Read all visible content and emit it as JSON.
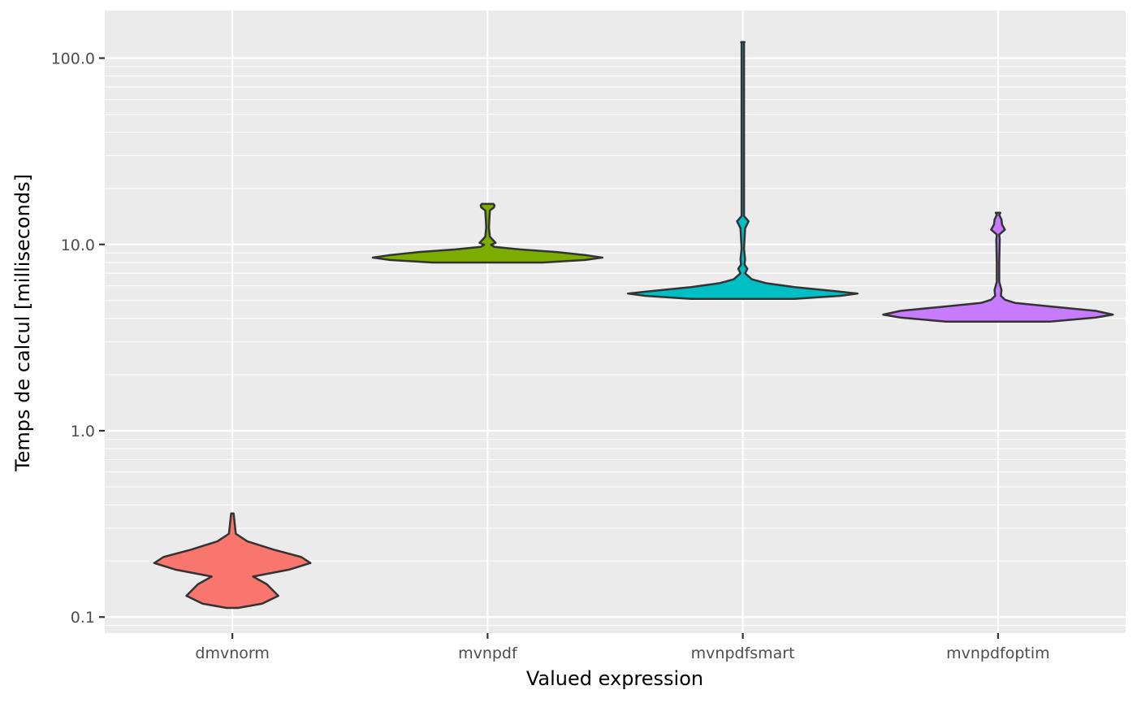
{
  "chart_data": {
    "type": "violin",
    "xlabel": "Valued expression",
    "ylabel": "Temps de calcul [milliseconds]",
    "y_scale": "log10",
    "ylim": [
      0.082,
      180
    ],
    "y_ticks": [
      0.1,
      1.0,
      10.0,
      100.0
    ],
    "y_tick_labels": [
      "0.1",
      "1.0",
      "10.0",
      "100.0"
    ],
    "grid": true,
    "legend": "none",
    "categories": [
      "dmvnorm",
      "mvnpdf",
      "mvnpdfsmart",
      "mvnpdfoptim"
    ],
    "series": [
      {
        "category": "dmvnorm",
        "color": "#F8766D",
        "min": 0.112,
        "max": 0.36,
        "profile": [
          [
            0.112,
            0.05
          ],
          [
            0.118,
            0.26
          ],
          [
            0.13,
            0.4
          ],
          [
            0.15,
            0.3
          ],
          [
            0.165,
            0.18
          ],
          [
            0.18,
            0.5
          ],
          [
            0.195,
            0.68
          ],
          [
            0.21,
            0.6
          ],
          [
            0.23,
            0.36
          ],
          [
            0.255,
            0.13
          ],
          [
            0.28,
            0.03
          ],
          [
            0.36,
            0.01
          ]
        ]
      },
      {
        "category": "mvnpdf",
        "color": "#7CAE00",
        "min": 8.0,
        "max": 16.5,
        "profile": [
          [
            8.0,
            0.48
          ],
          [
            8.25,
            0.85
          ],
          [
            8.5,
            1.0
          ],
          [
            8.75,
            0.86
          ],
          [
            9.1,
            0.6
          ],
          [
            9.4,
            0.28
          ],
          [
            9.7,
            0.06
          ],
          [
            9.95,
            0.03
          ],
          [
            10.2,
            0.07
          ],
          [
            10.5,
            0.05
          ],
          [
            11.0,
            0.02
          ],
          [
            11.8,
            0.015
          ],
          [
            12.3,
            0.012
          ],
          [
            13.5,
            0.015
          ],
          [
            15.2,
            0.02
          ],
          [
            15.8,
            0.055
          ],
          [
            16.2,
            0.06
          ],
          [
            16.5,
            0.05
          ]
        ]
      },
      {
        "category": "mvnpdfsmart",
        "color": "#00BFC4",
        "min": 5.1,
        "max": 122,
        "profile": [
          [
            5.1,
            0.45
          ],
          [
            5.3,
            0.85
          ],
          [
            5.45,
            1.0
          ],
          [
            5.6,
            0.82
          ],
          [
            5.9,
            0.45
          ],
          [
            6.2,
            0.2
          ],
          [
            6.5,
            0.08
          ],
          [
            7.0,
            0.02
          ],
          [
            7.4,
            0.04
          ],
          [
            7.8,
            0.015
          ],
          [
            8.3,
            0.02
          ],
          [
            9.5,
            0.008
          ],
          [
            12.2,
            0.02
          ],
          [
            13.3,
            0.05
          ],
          [
            14.2,
            0.01
          ],
          [
            30,
            0.007
          ],
          [
            120,
            0.009
          ],
          [
            122,
            0.015
          ]
        ]
      },
      {
        "category": "mvnpdfoptim",
        "color": "#C77CFF",
        "min": 3.85,
        "max": 14.8,
        "profile": [
          [
            3.85,
            0.45
          ],
          [
            4.05,
            0.85
          ],
          [
            4.2,
            1.0
          ],
          [
            4.4,
            0.85
          ],
          [
            4.65,
            0.45
          ],
          [
            4.85,
            0.15
          ],
          [
            5.05,
            0.06
          ],
          [
            5.3,
            0.025
          ],
          [
            5.7,
            0.03
          ],
          [
            6.3,
            0.01
          ],
          [
            8.0,
            0.008
          ],
          [
            10.6,
            0.015
          ],
          [
            11.3,
            0.01
          ],
          [
            12.0,
            0.06
          ],
          [
            12.8,
            0.035
          ],
          [
            13.6,
            0.03
          ],
          [
            14.4,
            0.01
          ],
          [
            14.8,
            0.02
          ]
        ]
      }
    ]
  }
}
